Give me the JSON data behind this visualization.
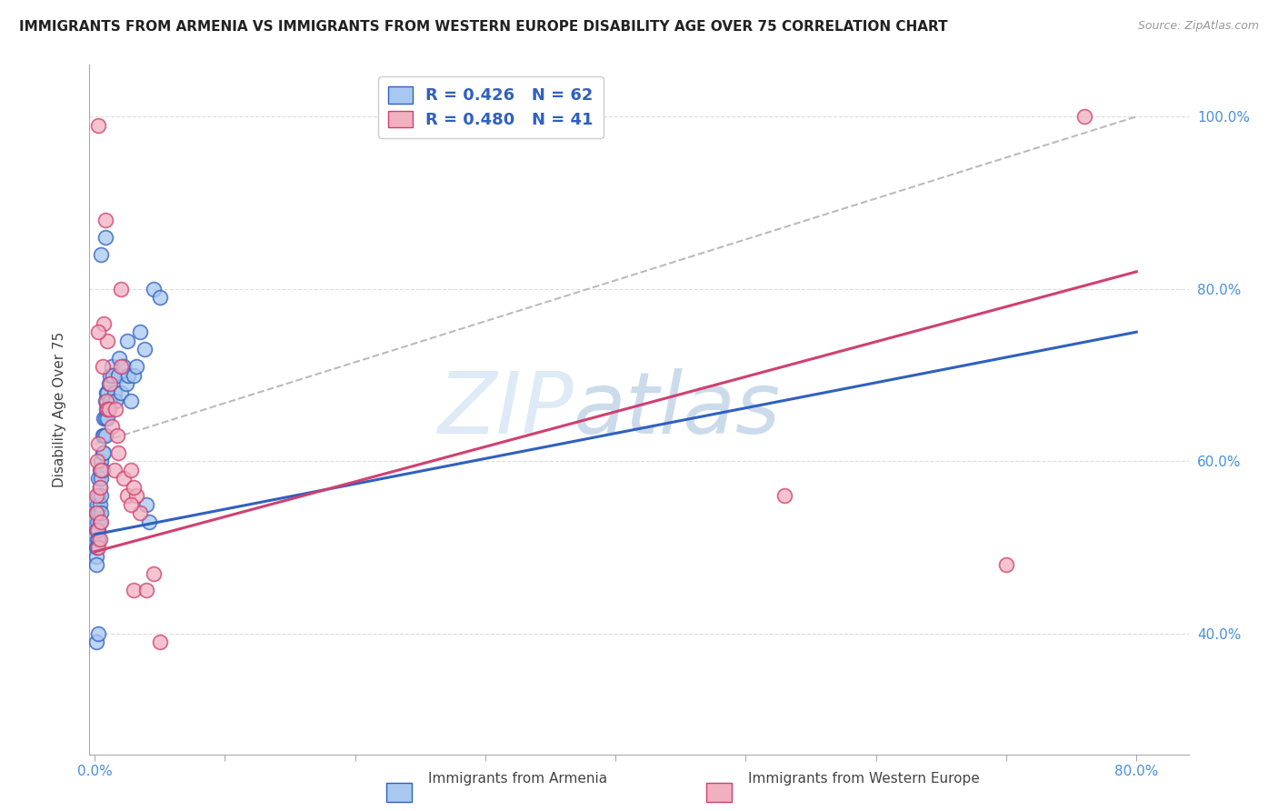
{
  "title": "IMMIGRANTS FROM ARMENIA VS IMMIGRANTS FROM WESTERN EUROPE DISABILITY AGE OVER 75 CORRELATION CHART",
  "source": "Source: ZipAtlas.com",
  "ylabel": "Disability Age Over 75",
  "color_blue": "#a8c8f0",
  "color_pink": "#f0b0c0",
  "line_blue": "#3060c0",
  "line_pink": "#d04070",
  "line_gray": "#bbbbbb",
  "watermark_color": "#d0e8f8",
  "background": "#ffffff",
  "grid_color": "#dddddd",
  "xlim": [
    -0.004,
    0.84
  ],
  "ylim": [
    0.26,
    1.06
  ],
  "x_ticks": [
    0.0,
    0.1,
    0.2,
    0.3,
    0.4,
    0.5,
    0.6,
    0.7,
    0.8
  ],
  "y_ticks_right": [
    0.4,
    0.6,
    0.8,
    1.0
  ],
  "y_tick_labels_right": [
    "40.0%",
    "60.0%",
    "80.0%",
    "100.0%"
  ],
  "blue_trend": [
    0.0,
    0.8,
    0.515,
    0.75
  ],
  "pink_trend": [
    0.0,
    0.8,
    0.495,
    0.82
  ],
  "gray_ref": [
    0.0,
    0.8,
    0.62,
    1.0
  ],
  "blue_x": [
    0.001,
    0.001,
    0.001,
    0.001,
    0.001,
    0.002,
    0.002,
    0.002,
    0.002,
    0.003,
    0.003,
    0.003,
    0.003,
    0.003,
    0.004,
    0.004,
    0.004,
    0.004,
    0.005,
    0.005,
    0.005,
    0.005,
    0.006,
    0.006,
    0.006,
    0.007,
    0.007,
    0.007,
    0.008,
    0.008,
    0.008,
    0.009,
    0.009,
    0.01,
    0.01,
    0.011,
    0.012,
    0.012,
    0.013,
    0.014,
    0.015,
    0.016,
    0.018,
    0.019,
    0.02,
    0.022,
    0.024,
    0.025,
    0.026,
    0.028,
    0.03,
    0.032,
    0.035,
    0.038,
    0.04,
    0.042,
    0.045,
    0.05,
    0.005,
    0.008,
    0.001,
    0.003
  ],
  "blue_y": [
    0.54,
    0.52,
    0.5,
    0.49,
    0.48,
    0.55,
    0.53,
    0.51,
    0.5,
    0.58,
    0.56,
    0.54,
    0.52,
    0.51,
    0.59,
    0.57,
    0.55,
    0.53,
    0.6,
    0.58,
    0.56,
    0.54,
    0.63,
    0.61,
    0.59,
    0.65,
    0.63,
    0.61,
    0.67,
    0.65,
    0.63,
    0.68,
    0.66,
    0.68,
    0.65,
    0.69,
    0.7,
    0.67,
    0.71,
    0.7,
    0.68,
    0.67,
    0.7,
    0.72,
    0.68,
    0.71,
    0.69,
    0.74,
    0.7,
    0.67,
    0.7,
    0.71,
    0.75,
    0.73,
    0.55,
    0.53,
    0.8,
    0.79,
    0.84,
    0.86,
    0.39,
    0.4
  ],
  "pink_x": [
    0.001,
    0.001,
    0.002,
    0.002,
    0.003,
    0.003,
    0.004,
    0.004,
    0.005,
    0.005,
    0.006,
    0.007,
    0.008,
    0.009,
    0.01,
    0.01,
    0.011,
    0.012,
    0.013,
    0.015,
    0.016,
    0.017,
    0.018,
    0.02,
    0.022,
    0.025,
    0.028,
    0.03,
    0.032,
    0.035,
    0.04,
    0.045,
    0.028,
    0.03,
    0.003,
    0.02,
    0.05,
    0.53,
    0.7,
    0.76,
    0.003
  ],
  "pink_y": [
    0.56,
    0.54,
    0.6,
    0.52,
    0.62,
    0.5,
    0.57,
    0.51,
    0.59,
    0.53,
    0.71,
    0.76,
    0.88,
    0.67,
    0.74,
    0.66,
    0.66,
    0.69,
    0.64,
    0.59,
    0.66,
    0.63,
    0.61,
    0.71,
    0.58,
    0.56,
    0.59,
    0.45,
    0.56,
    0.54,
    0.45,
    0.47,
    0.55,
    0.57,
    0.99,
    0.8,
    0.39,
    0.56,
    0.48,
    1.0,
    0.75
  ]
}
